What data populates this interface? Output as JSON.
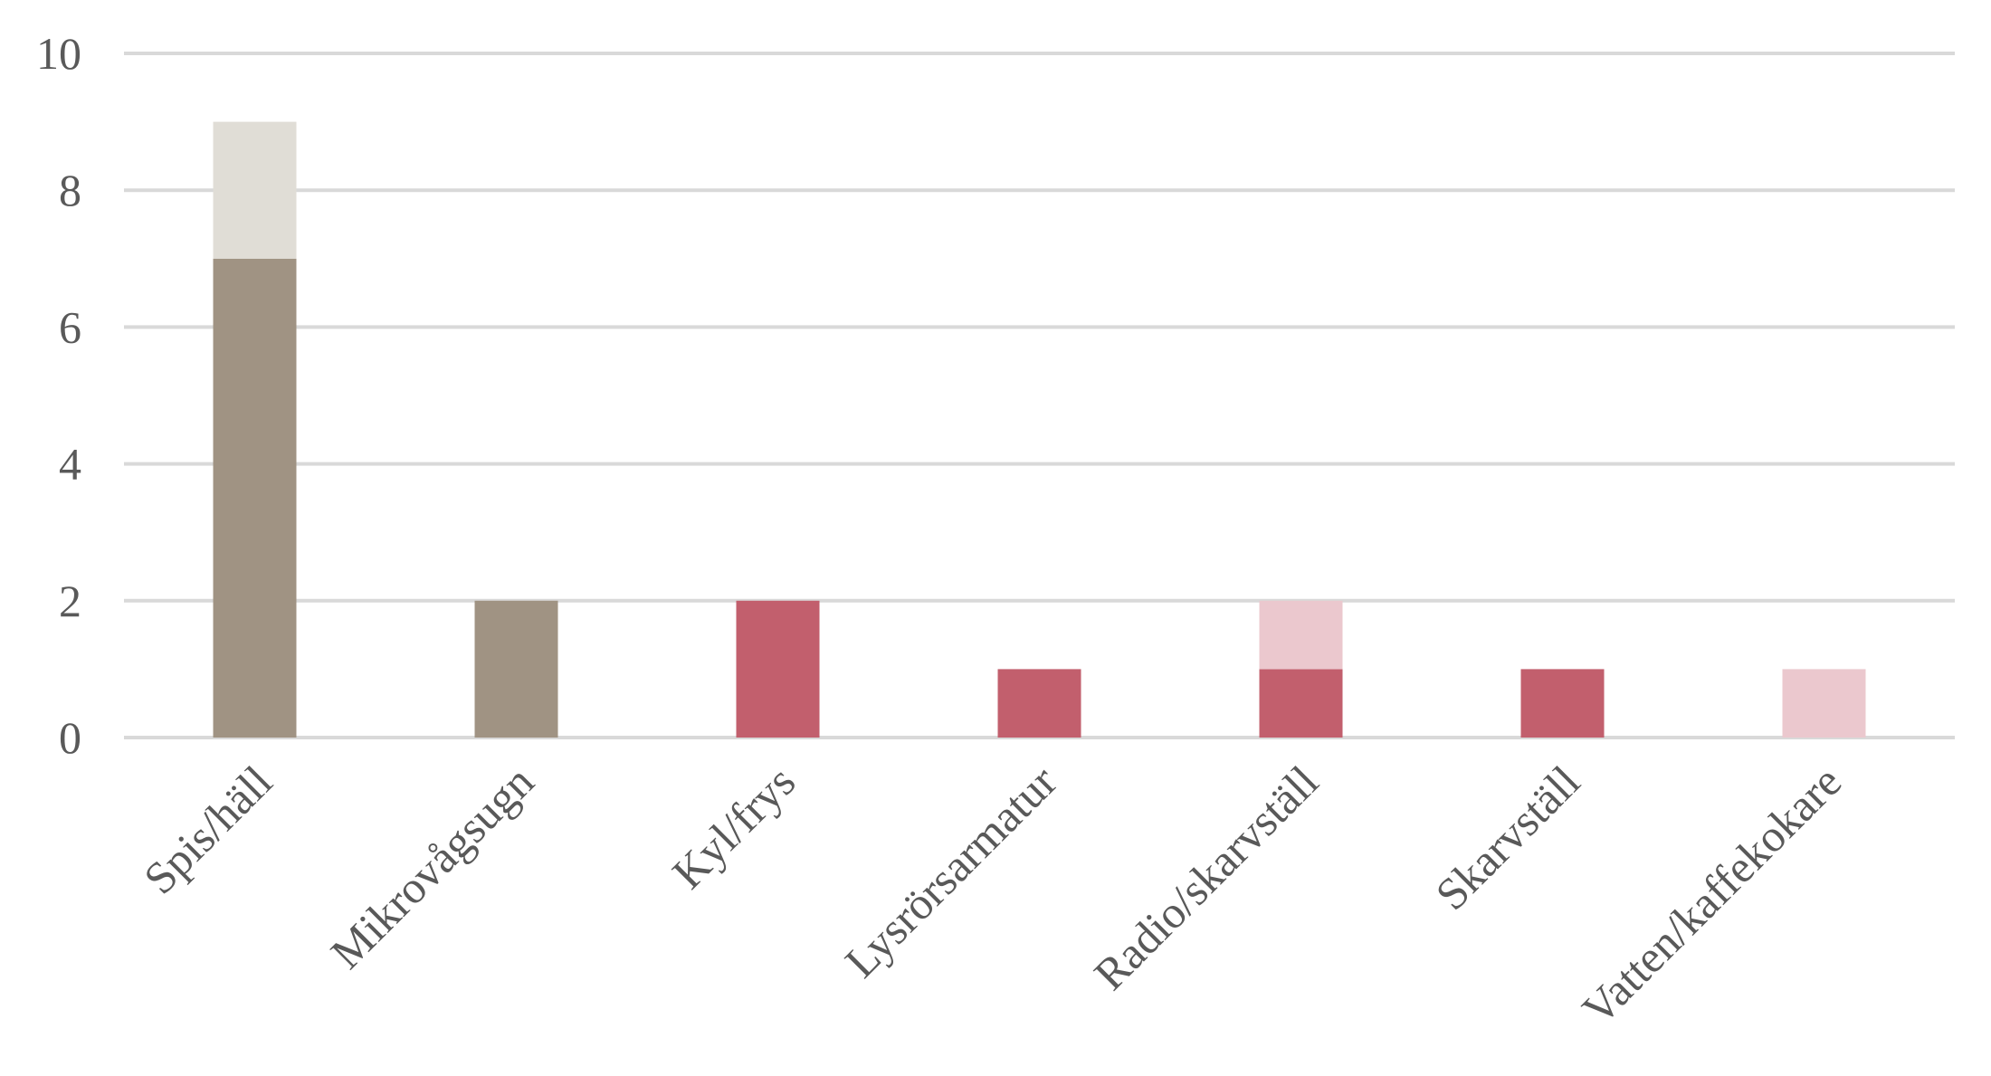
{
  "chart_data": {
    "type": "bar",
    "stacked": true,
    "categories": [
      "Spis/häll",
      "Mikrovågsugn",
      "Kyl/frys",
      "Lysrörsarmatur",
      "Radio/skarvställ",
      "Skarvställ",
      "Vatten/kaffekokare"
    ],
    "series": [
      {
        "values": [
          7,
          2,
          0,
          0,
          0,
          0,
          0
        ],
        "color": "#a09383"
      },
      {
        "values": [
          2,
          0,
          0,
          0,
          0,
          0,
          0
        ],
        "color": "#e0ddd6"
      },
      {
        "values": [
          0,
          0,
          2,
          1,
          1,
          1,
          0
        ],
        "color": "#c25f6d"
      },
      {
        "values": [
          0,
          0,
          0,
          0,
          1,
          0,
          1
        ],
        "color": "#ebc8ce"
      }
    ],
    "y_ticks": [
      0,
      2,
      4,
      6,
      8,
      10
    ],
    "ylim": [
      0,
      10
    ],
    "grid": true,
    "grid_color": "#d9d9d9",
    "legend": "none",
    "title": "",
    "xlabel": "",
    "ylabel": ""
  }
}
